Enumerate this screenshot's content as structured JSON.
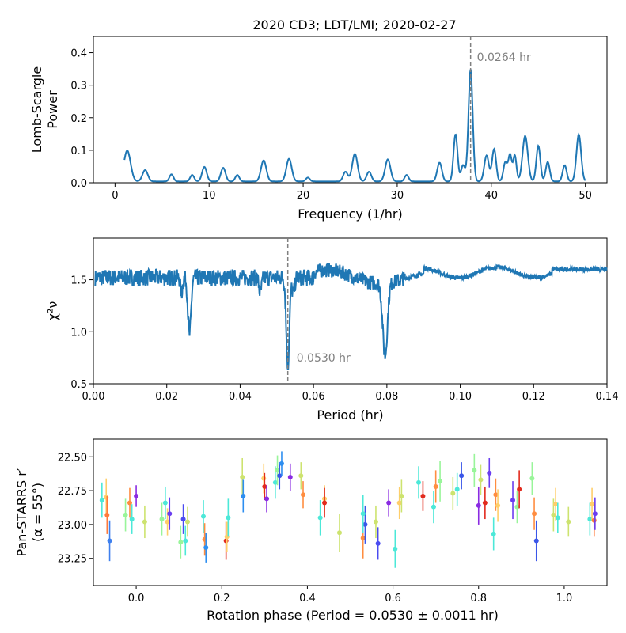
{
  "figure_title": "2020 CD3;  LDT/LMI;  2020-02-27",
  "chart_data": [
    {
      "type": "line",
      "panel": "periodogram",
      "xlabel": "Frequency (1/hr)",
      "ylabel_lines": [
        "Lomb-Scargle",
        "Power"
      ],
      "xlim": [
        -2.3,
        52.3
      ],
      "ylim": [
        0.0,
        0.45
      ],
      "xticks": [
        0,
        10,
        20,
        30,
        40,
        50
      ],
      "yticks": [
        0.0,
        0.1,
        0.2,
        0.3,
        0.4
      ],
      "line_color": "#1f77b4",
      "peaks": [
        [
          1.3,
          0.095,
          0.5
        ],
        [
          3.2,
          0.035,
          0.4
        ],
        [
          6.0,
          0.022,
          0.3
        ],
        [
          8.2,
          0.02,
          0.3
        ],
        [
          9.5,
          0.045,
          0.35
        ],
        [
          11.5,
          0.042,
          0.35
        ],
        [
          13.0,
          0.02,
          0.3
        ],
        [
          15.8,
          0.065,
          0.4
        ],
        [
          18.5,
          0.07,
          0.4
        ],
        [
          20.5,
          0.012,
          0.3
        ],
        [
          24.5,
          0.03,
          0.35
        ],
        [
          25.5,
          0.085,
          0.4
        ],
        [
          27.0,
          0.03,
          0.35
        ],
        [
          29.0,
          0.068,
          0.4
        ],
        [
          31.0,
          0.02,
          0.3
        ],
        [
          34.5,
          0.058,
          0.35
        ],
        [
          36.2,
          0.145,
          0.3
        ],
        [
          37.0,
          0.05,
          0.3
        ],
        [
          37.8,
          0.345,
          0.32
        ],
        [
          39.5,
          0.08,
          0.35
        ],
        [
          40.3,
          0.1,
          0.3
        ],
        [
          41.5,
          0.06,
          0.3
        ],
        [
          42.0,
          0.08,
          0.25
        ],
        [
          42.5,
          0.08,
          0.25
        ],
        [
          43.6,
          0.14,
          0.4
        ],
        [
          45.0,
          0.11,
          0.3
        ],
        [
          46.0,
          0.06,
          0.3
        ],
        [
          47.8,
          0.05,
          0.3
        ],
        [
          49.3,
          0.145,
          0.35
        ]
      ],
      "x_range_data": [
        1.0,
        50.0
      ],
      "marker_line_x": 37.8,
      "annotation": "0.0264 hr"
    },
    {
      "type": "line",
      "panel": "chi2_vs_period",
      "xlabel": "Period (hr)",
      "ylabel": "χ²ν",
      "xlim": [
        0.0,
        0.14
      ],
      "ylim": [
        0.5,
        1.9
      ],
      "xticks": [
        "0.00",
        "0.02",
        "0.04",
        "0.06",
        "0.08",
        "0.10",
        "0.12",
        "0.14"
      ],
      "yticks": [
        "0.5",
        "1.0",
        "1.5"
      ],
      "line_color": "#1f77b4",
      "dips": [
        [
          0.0262,
          0.55,
          0.0006
        ],
        [
          0.053,
          0.85,
          0.0006
        ],
        [
          0.0795,
          0.7,
          0.0009
        ],
        [
          0.024,
          0.15,
          0.0004
        ],
        [
          0.0455,
          0.15,
          0.0005
        ],
        [
          0.0545,
          0.15,
          0.0005
        ]
      ],
      "marker_line_x": 0.053,
      "annotation": "0.0530 hr"
    },
    {
      "type": "scatter",
      "panel": "lightcurve",
      "xlabel": "Rotation phase (Period = 0.0530 ± 0.0011 hr)",
      "ylabel_lines": [
        "Pan-STARRS r′",
        "(α = 55°)"
      ],
      "xlim": [
        -0.1,
        1.1
      ],
      "ylim": [
        23.45,
        22.37
      ],
      "xticks": [
        "0.0",
        "0.2",
        "0.4",
        "0.6",
        "0.8",
        "1.0"
      ],
      "yticks": [
        "22.50",
        "22.75",
        "23.00",
        "23.25"
      ],
      "points": [
        {
          "x": -0.08,
          "y": 22.82,
          "err": 0.13,
          "c": "#4ce8d8"
        },
        {
          "x": -0.07,
          "y": 22.8,
          "err": 0.14,
          "c": "#ffce6a"
        },
        {
          "x": -0.068,
          "y": 22.93,
          "err": 0.14,
          "c": "#ff7a3a"
        },
        {
          "x": -0.062,
          "y": 23.12,
          "err": 0.15,
          "c": "#3f80ee"
        },
        {
          "x": -0.025,
          "y": 22.93,
          "err": 0.12,
          "c": "#99f59a"
        },
        {
          "x": -0.015,
          "y": 22.84,
          "err": 0.11,
          "c": "#ff8d40"
        },
        {
          "x": -0.01,
          "y": 22.96,
          "err": 0.11,
          "c": "#4ce8d8"
        },
        {
          "x": 0.0,
          "y": 22.79,
          "err": 0.08,
          "c": "#8a2be2"
        },
        {
          "x": 0.02,
          "y": 22.98,
          "err": 0.12,
          "c": "#cde36f"
        },
        {
          "x": 0.06,
          "y": 22.96,
          "err": 0.12,
          "c": "#99f59a"
        },
        {
          "x": 0.068,
          "y": 22.84,
          "err": 0.12,
          "c": "#4ce8d8"
        },
        {
          "x": 0.073,
          "y": 22.98,
          "err": 0.1,
          "c": "#ffce6a"
        },
        {
          "x": 0.078,
          "y": 22.92,
          "err": 0.12,
          "c": "#6a3df0"
        },
        {
          "x": 0.104,
          "y": 23.13,
          "err": 0.12,
          "c": "#99f59a"
        },
        {
          "x": 0.11,
          "y": 22.96,
          "err": 0.11,
          "c": "#4a4bf0"
        },
        {
          "x": 0.115,
          "y": 23.12,
          "err": 0.11,
          "c": "#4ce8d8"
        },
        {
          "x": 0.12,
          "y": 22.98,
          "err": 0.11,
          "c": "#cde36f"
        },
        {
          "x": 0.157,
          "y": 22.94,
          "err": 0.12,
          "c": "#4ce8d8"
        },
        {
          "x": 0.16,
          "y": 23.11,
          "err": 0.12,
          "c": "#ff8d40"
        },
        {
          "x": 0.163,
          "y": 23.17,
          "err": 0.11,
          "c": "#2d8ef0"
        },
        {
          "x": 0.21,
          "y": 23.12,
          "err": 0.14,
          "c": "#e22a1d"
        },
        {
          "x": 0.212,
          "y": 23.09,
          "err": 0.11,
          "c": "#ffce6a"
        },
        {
          "x": 0.215,
          "y": 22.95,
          "err": 0.14,
          "c": "#4ce8d8"
        },
        {
          "x": 0.248,
          "y": 22.65,
          "err": 0.14,
          "c": "#cde36f"
        },
        {
          "x": 0.25,
          "y": 22.79,
          "err": 0.12,
          "c": "#2d8ef0"
        },
        {
          "x": 0.298,
          "y": 22.66,
          "err": 0.11,
          "c": "#ffce6a"
        },
        {
          "x": 0.3,
          "y": 22.72,
          "err": 0.1,
          "c": "#e22a1d"
        },
        {
          "x": 0.305,
          "y": 22.81,
          "err": 0.1,
          "c": "#8a2be2"
        },
        {
          "x": 0.325,
          "y": 22.69,
          "err": 0.12,
          "c": "#4ce8d8"
        },
        {
          "x": 0.33,
          "y": 22.6,
          "err": 0.11,
          "c": "#99f59a"
        },
        {
          "x": 0.335,
          "y": 22.64,
          "err": 0.1,
          "c": "#3a56e8"
        },
        {
          "x": 0.34,
          "y": 22.55,
          "err": 0.09,
          "c": "#2d8ef0"
        },
        {
          "x": 0.36,
          "y": 22.65,
          "err": 0.1,
          "c": "#8a2be2"
        },
        {
          "x": 0.385,
          "y": 22.64,
          "err": 0.1,
          "c": "#cde36f"
        },
        {
          "x": 0.39,
          "y": 22.78,
          "err": 0.1,
          "c": "#ff8d40"
        },
        {
          "x": 0.43,
          "y": 22.95,
          "err": 0.13,
          "c": "#4ce8d8"
        },
        {
          "x": 0.44,
          "y": 22.81,
          "err": 0.1,
          "c": "#ffce6a"
        },
        {
          "x": 0.44,
          "y": 22.84,
          "err": 0.11,
          "c": "#e22a1d"
        },
        {
          "x": 0.475,
          "y": 23.06,
          "err": 0.14,
          "c": "#cde36f"
        },
        {
          "x": 0.53,
          "y": 23.1,
          "err": 0.15,
          "c": "#ff8d40"
        },
        {
          "x": 0.535,
          "y": 23.0,
          "err": 0.14,
          "c": "#3a56e8"
        },
        {
          "x": 0.53,
          "y": 22.92,
          "err": 0.14,
          "c": "#4ce8d8"
        },
        {
          "x": 0.56,
          "y": 22.98,
          "err": 0.12,
          "c": "#cde36f"
        },
        {
          "x": 0.565,
          "y": 23.14,
          "err": 0.12,
          "c": "#4a4bf0"
        },
        {
          "x": 0.59,
          "y": 22.84,
          "err": 0.1,
          "c": "#8a2be2"
        },
        {
          "x": 0.605,
          "y": 23.18,
          "err": 0.14,
          "c": "#4ce8d8"
        },
        {
          "x": 0.615,
          "y": 22.84,
          "err": 0.12,
          "c": "#ffce6a"
        },
        {
          "x": 0.62,
          "y": 22.79,
          "err": 0.12,
          "c": "#cde36f"
        },
        {
          "x": 0.66,
          "y": 22.69,
          "err": 0.12,
          "c": "#4ce8d8"
        },
        {
          "x": 0.67,
          "y": 22.79,
          "err": 0.11,
          "c": "#e22a1d"
        },
        {
          "x": 0.695,
          "y": 22.87,
          "err": 0.12,
          "c": "#4ce8d8"
        },
        {
          "x": 0.7,
          "y": 22.72,
          "err": 0.12,
          "c": "#ff8d40"
        },
        {
          "x": 0.71,
          "y": 22.68,
          "err": 0.15,
          "c": "#99f59a"
        },
        {
          "x": 0.74,
          "y": 22.77,
          "err": 0.12,
          "c": "#cde36f"
        },
        {
          "x": 0.75,
          "y": 22.74,
          "err": 0.12,
          "c": "#4ce8d8"
        },
        {
          "x": 0.76,
          "y": 22.64,
          "err": 0.1,
          "c": "#3a56e8"
        },
        {
          "x": 0.79,
          "y": 22.6,
          "err": 0.12,
          "c": "#99f59a"
        },
        {
          "x": 0.8,
          "y": 22.86,
          "err": 0.14,
          "c": "#8a2be2"
        },
        {
          "x": 0.805,
          "y": 22.67,
          "err": 0.11,
          "c": "#cde36f"
        },
        {
          "x": 0.815,
          "y": 22.84,
          "err": 0.12,
          "c": "#e22a1d"
        },
        {
          "x": 0.825,
          "y": 22.62,
          "err": 0.11,
          "c": "#6a3df0"
        },
        {
          "x": 0.835,
          "y": 23.07,
          "err": 0.12,
          "c": "#4ce8d8"
        },
        {
          "x": 0.84,
          "y": 22.78,
          "err": 0.12,
          "c": "#ff8d40"
        },
        {
          "x": 0.845,
          "y": 22.86,
          "err": 0.12,
          "c": "#ffce6a"
        },
        {
          "x": 0.88,
          "y": 22.82,
          "err": 0.14,
          "c": "#6a3df0"
        },
        {
          "x": 0.89,
          "y": 22.87,
          "err": 0.12,
          "c": "#99f59a"
        },
        {
          "x": 0.895,
          "y": 22.74,
          "err": 0.14,
          "c": "#e22a1d"
        },
        {
          "x": 0.925,
          "y": 22.66,
          "err": 0.12,
          "c": "#99f59a"
        },
        {
          "x": 0.93,
          "y": 22.92,
          "err": 0.12,
          "c": "#ff8d40"
        },
        {
          "x": 0.935,
          "y": 23.12,
          "err": 0.15,
          "c": "#3a56e8"
        },
        {
          "x": 0.975,
          "y": 22.93,
          "err": 0.12,
          "c": "#cde36f"
        },
        {
          "x": 0.98,
          "y": 22.85,
          "err": 0.12,
          "c": "#ffce6a"
        },
        {
          "x": 0.985,
          "y": 22.95,
          "err": 0.11,
          "c": "#4ce8d8"
        },
        {
          "x": 1.01,
          "y": 22.98,
          "err": 0.11,
          "c": "#cde36f"
        },
        {
          "x": 1.06,
          "y": 22.96,
          "err": 0.12,
          "c": "#4ce8d8"
        },
        {
          "x": 1.065,
          "y": 22.85,
          "err": 0.12,
          "c": "#ffce6a"
        },
        {
          "x": 1.07,
          "y": 22.97,
          "err": 0.12,
          "c": "#ff7a3a"
        },
        {
          "x": 1.072,
          "y": 22.92,
          "err": 0.12,
          "c": "#6a3df0"
        }
      ]
    }
  ]
}
